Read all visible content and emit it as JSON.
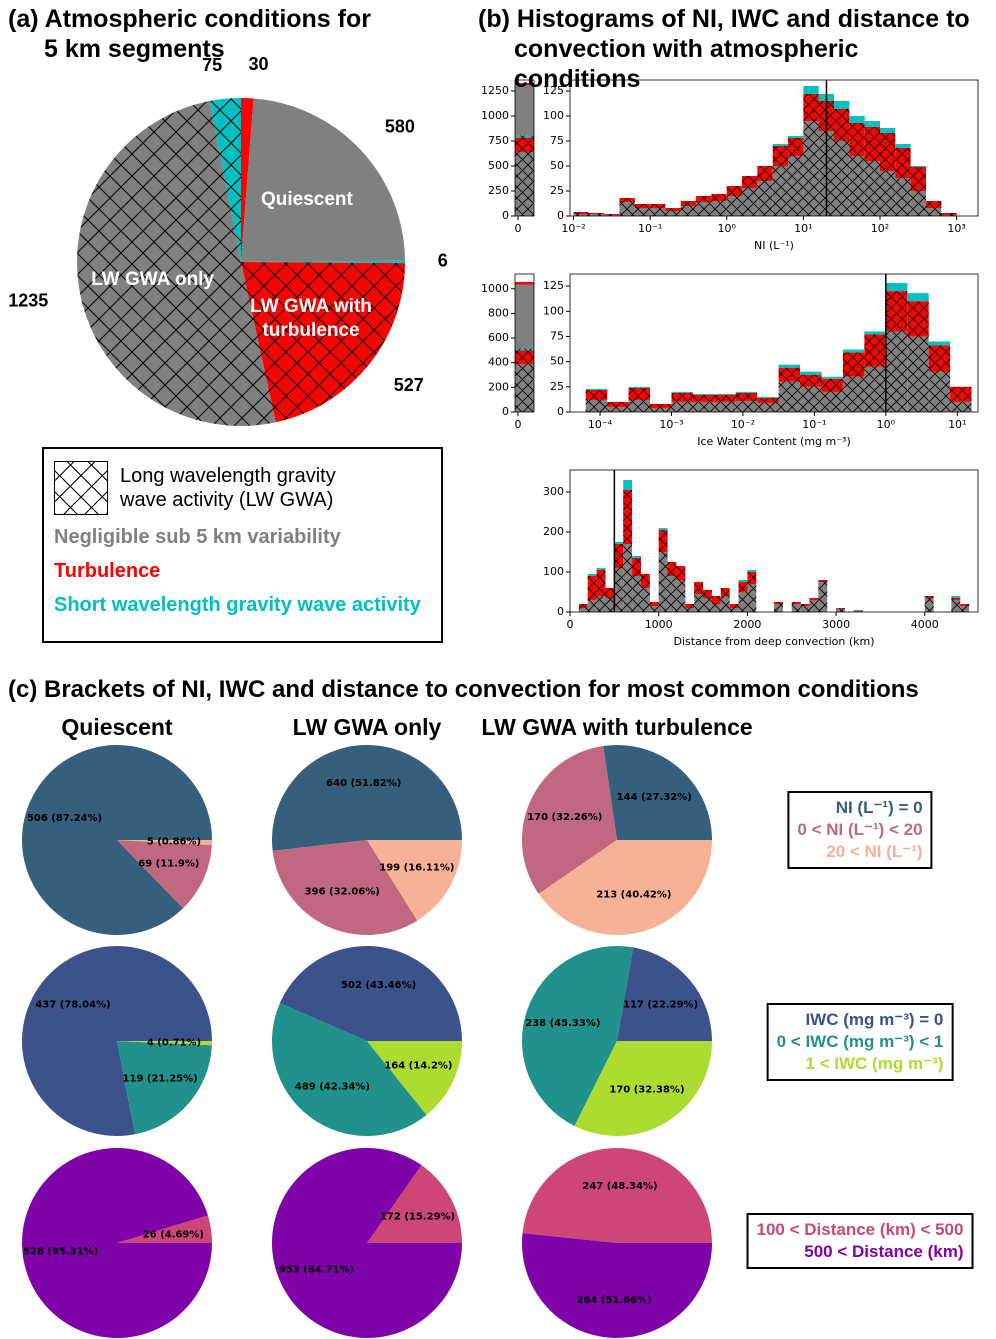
{
  "chart_data": [
    {
      "type": "pie",
      "title": "(a) Atmospheric conditions for 5 km segments",
      "categories": [
        null,
        "Quiescent",
        null,
        "LW GWA with turbulence",
        "LW GWA only",
        null
      ],
      "values": [
        30,
        580,
        6,
        527,
        1235,
        75
      ],
      "colors": [
        "#ff0000",
        "#808080",
        "#00c0c0",
        "#ff0000",
        "#808080",
        "#00c0c0"
      ],
      "hatch": [
        false,
        false,
        false,
        true,
        true,
        true
      ],
      "legend": {
        "entries": [
          "Long wavelength gravity wave activity (LW GWA)",
          "Negligible sub 5 km variability",
          "Turbulence",
          "Short wavelength gravity wave activity"
        ],
        "colors": [
          "#000000",
          "#808080",
          "#ff0000",
          "#00c0c0"
        ],
        "hatch": [
          true,
          false,
          false,
          false
        ]
      }
    },
    {
      "type": "histogram",
      "title": "(b) Histograms of NI, IWC and distance to convection with atmospheric conditions",
      "xlabel": "NI (L⁻¹)",
      "log_x": true,
      "bins": [
        0.01,
        0.0158,
        0.0251,
        0.0398,
        0.0631,
        0.1,
        0.158,
        0.251,
        0.398,
        0.631,
        1,
        1.58,
        2.51,
        3.98,
        6.31,
        10,
        15.8,
        25.1,
        39.8,
        63.1,
        100,
        158,
        251,
        398,
        631,
        1000
      ],
      "series": [
        {
          "color": "#808080",
          "hatch": true,
          "values": [
            2,
            2,
            1,
            14,
            8,
            8,
            5,
            10,
            14,
            15,
            20,
            28,
            35,
            50,
            60,
            95,
            85,
            75,
            60,
            55,
            45,
            38,
            25,
            8,
            1
          ]
        },
        {
          "color": "#ff0000",
          "hatch": true,
          "values": [
            2,
            1,
            1,
            4,
            4,
            4,
            3,
            5,
            6,
            7,
            10,
            12,
            15,
            20,
            18,
            27,
            30,
            32,
            33,
            34,
            38,
            30,
            24,
            7,
            2
          ]
        },
        {
          "color": "#00c0c0",
          "hatch": false,
          "values": [
            0,
            0,
            0,
            0,
            0,
            0,
            0,
            0,
            0,
            0,
            0,
            0,
            0,
            2,
            2,
            8,
            7,
            8,
            7,
            6,
            5,
            4,
            1,
            0,
            0
          ]
        }
      ],
      "xlim": [
        0.009,
        1900
      ],
      "xticks": [
        {
          "value": 0.01,
          "label": "10⁻²"
        },
        {
          "value": 0.1,
          "label": "10⁻¹"
        },
        {
          "value": 1,
          "label": "10⁰"
        },
        {
          "value": 10,
          "label": "10¹"
        },
        {
          "value": 100,
          "label": "10²"
        },
        {
          "value": 1000,
          "label": "10³"
        }
      ],
      "ylim": [
        0,
        136
      ],
      "yticks": [
        0,
        25,
        50,
        75,
        100,
        125
      ],
      "vline": 20,
      "zero": {
        "values": [
          640,
          144,
          20,
          506,
          20
        ],
        "colors": [
          "#808080",
          "#ff0000",
          "#00c0c0",
          "#808080",
          "#ff0000"
        ],
        "hatch": [
          true,
          true,
          true,
          false,
          false
        ],
        "ylim": [
          0,
          1360
        ],
        "yticks": [
          0,
          250,
          500,
          750,
          1000,
          1250
        ],
        "xticks": [
          0
        ]
      }
    },
    {
      "type": "histogram",
      "xlabel": "Ice Water Content (mg m⁻³)",
      "log_x": true,
      "bins": [
        6.31e-05,
        0.000126,
        0.000251,
        0.000501,
        0.001,
        0.002,
        0.00398,
        0.00794,
        0.0158,
        0.0316,
        0.0631,
        0.126,
        0.251,
        0.501,
        1,
        2,
        3.98,
        7.94,
        15.8
      ],
      "series": [
        {
          "color": "#808080",
          "hatch": true,
          "values": [
            12,
            5,
            12,
            4,
            10,
            10,
            10,
            11,
            9,
            30,
            25,
            20,
            35,
            45,
            80,
            75,
            40,
            10
          ]
        },
        {
          "color": "#ff0000",
          "hatch": true,
          "values": [
            10,
            5,
            12,
            4,
            9,
            7,
            7,
            8,
            5,
            14,
            12,
            13,
            24,
            32,
            40,
            35,
            26,
            15
          ]
        },
        {
          "color": "#00c0c0",
          "hatch": false,
          "values": [
            1,
            0,
            1,
            0,
            1,
            1,
            1,
            1,
            1,
            3,
            3,
            2,
            3,
            3,
            8,
            8,
            4,
            0
          ]
        }
      ],
      "xlim": [
        3.8e-05,
        19.5
      ],
      "xticks": [
        {
          "value": 0.0001,
          "label": "10⁻⁴"
        },
        {
          "value": 0.001,
          "label": "10⁻³"
        },
        {
          "value": 0.01,
          "label": "10⁻²"
        },
        {
          "value": 0.1,
          "label": "10⁻¹"
        },
        {
          "value": 1,
          "label": "10⁰"
        },
        {
          "value": 10,
          "label": "10¹"
        }
      ],
      "ylim": [
        0,
        137
      ],
      "yticks": [
        0,
        25,
        50,
        75,
        100,
        125
      ],
      "vline": 1,
      "zero": {
        "values": [
          390,
          110,
          15,
          520,
          20
        ],
        "colors": [
          "#808080",
          "#ff0000",
          "#00c0c0",
          "#808080",
          "#ff0000"
        ],
        "hatch": [
          true,
          true,
          true,
          false,
          false
        ],
        "ylim": [
          0,
          1120
        ],
        "yticks": [
          0,
          200,
          400,
          600,
          800,
          1000
        ],
        "xticks": [
          0
        ]
      }
    },
    {
      "type": "histogram",
      "xlabel": "Distance from deep convection (km)",
      "log_x": false,
      "bins": [
        100,
        200,
        300,
        400,
        500,
        600,
        700,
        800,
        900,
        1000,
        1100,
        1200,
        1300,
        1400,
        1500,
        1600,
        1700,
        1800,
        1900,
        2000,
        2100,
        2200,
        2300,
        2400,
        2500,
        2600,
        2700,
        2800,
        2900,
        3000,
        3100,
        3200,
        3300,
        3400,
        3500,
        3600,
        3700,
        3800,
        3900,
        4000,
        4100,
        4200,
        4300,
        4400,
        4500,
        4600
      ],
      "series": [
        {
          "color": "#808080",
          "hatch": true,
          "values": [
            10,
            30,
            40,
            35,
            110,
            170,
            90,
            60,
            15,
            150,
            90,
            80,
            10,
            45,
            35,
            20,
            40,
            10,
            50,
            70,
            0,
            0,
            20,
            0,
            20,
            15,
            30,
            75,
            0,
            8,
            0,
            5,
            0,
            0,
            0,
            0,
            0,
            0,
            0,
            35,
            0,
            0,
            30,
            15,
            0
          ]
        },
        {
          "color": "#ff0000",
          "hatch": true,
          "values": [
            10,
            60,
            65,
            25,
            60,
            135,
            45,
            35,
            10,
            55,
            35,
            35,
            10,
            30,
            20,
            20,
            20,
            10,
            25,
            30,
            0,
            0,
            5,
            0,
            5,
            5,
            5,
            5,
            0,
            2,
            0,
            0,
            0,
            0,
            0,
            0,
            0,
            0,
            0,
            5,
            0,
            0,
            5,
            5,
            0
          ]
        },
        {
          "color": "#00c0c0",
          "hatch": false,
          "values": [
            0,
            5,
            5,
            0,
            5,
            25,
            5,
            0,
            0,
            5,
            0,
            0,
            0,
            0,
            0,
            0,
            0,
            0,
            5,
            5,
            0,
            0,
            0,
            0,
            0,
            0,
            0,
            0,
            0,
            0,
            0,
            0,
            0,
            0,
            0,
            0,
            0,
            0,
            0,
            0,
            0,
            0,
            5,
            0,
            0
          ]
        }
      ],
      "xlim": [
        0,
        4600
      ],
      "xticks": [
        0,
        1000,
        2000,
        3000,
        4000
      ],
      "ylim": [
        0,
        355
      ],
      "yticks": [
        0,
        100,
        200,
        300
      ],
      "vline": 500
    },
    {
      "type": "pie_grid",
      "title": "(c) Brackets of NI, IWC and distance to convection for most common conditions",
      "columns": [
        "Quiescent",
        "LW GWA only",
        "LW GWA with turbulence"
      ],
      "rows": [
        {
          "legend": [
            "NI (L⁻¹) = 0",
            "0 < NI (L⁻¹) < 20",
            "20 < NI (L⁻¹)"
          ],
          "colors": [
            "#355f7d",
            "#c0687f",
            "#f6b196"
          ],
          "pies": [
            {
              "values": [
                506,
                69,
                5
              ],
              "value_labels": [
                "506 (87.24%)",
                "69 (11.9%)",
                "5 (0.86%)"
              ]
            },
            {
              "values": [
                640,
                396,
                199
              ],
              "value_labels": [
                "640 (51.82%)",
                "396 (32.06%)",
                "199 (16.11%)"
              ]
            },
            {
              "values": [
                144,
                170,
                213
              ],
              "value_labels": [
                "144 (27.32%)",
                "170 (32.26%)",
                "213 (40.42%)"
              ]
            }
          ]
        },
        {
          "legend": [
            "IWC (mg m⁻³) = 0",
            "0 < IWC (mg m⁻³) < 1",
            "1 < IWC (mg m⁻³)"
          ],
          "colors": [
            "#3b528b",
            "#21918c",
            "#addc30"
          ],
          "pies": [
            {
              "values": [
                437,
                119,
                4
              ],
              "value_labels": [
                "437 (78.04%)",
                "119 (21.25%)",
                "4 (0.71%)"
              ]
            },
            {
              "values": [
                502,
                489,
                164
              ],
              "value_labels": [
                "502 (43.46%)",
                "489 (42.34%)",
                "164 (14.2%)"
              ]
            },
            {
              "values": [
                117,
                238,
                170
              ],
              "value_labels": [
                "117 (22.29%)",
                "238 (45.33%)",
                "170 (32.38%)"
              ]
            }
          ]
        },
        {
          "legend": [
            "100 < Distance (km) < 500",
            "500 < Distance (km)"
          ],
          "colors": [
            "#cc4778",
            "#7e03a8"
          ],
          "pies": [
            {
              "values": [
                26,
                528
              ],
              "value_labels": [
                "26 (4.69%)",
                "528 (95.31%)"
              ]
            },
            {
              "values": [
                172,
                953
              ],
              "value_labels": [
                "172 (15.29%)",
                "953 (84.71%)"
              ]
            },
            {
              "values": [
                247,
                264
              ],
              "value_labels": [
                "247 (48.34%)",
                "264 (51.66%)"
              ]
            }
          ]
        }
      ]
    }
  ]
}
